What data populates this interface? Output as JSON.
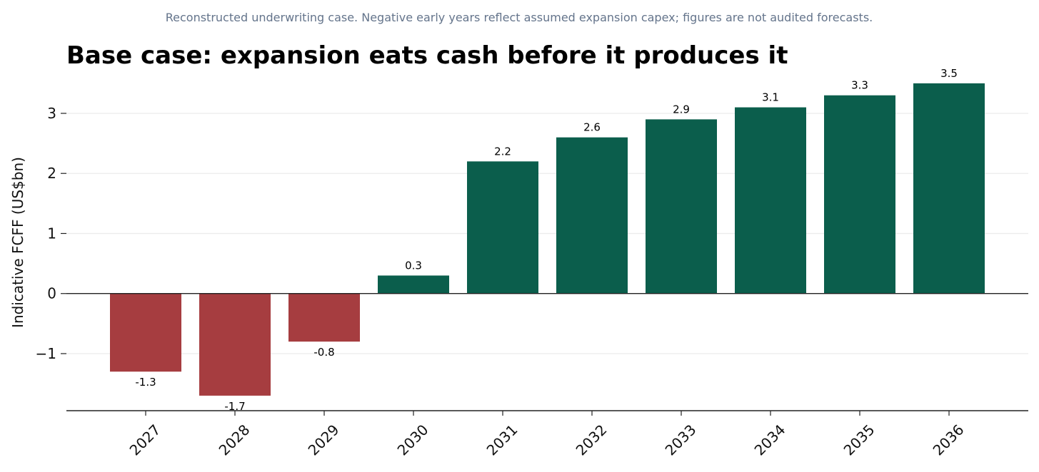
{
  "caption": "Reconstructed underwriting case. Negative early years reflect assumed expansion capex; figures are not audited forecasts.",
  "colors": {
    "positive": "#0b5e4c",
    "negative": "#a63d40",
    "grid": "#ececec",
    "axis": "#222222",
    "caption": "#64748b"
  },
  "chart_data": {
    "type": "bar",
    "title": "Base case: expansion eats cash before it produces it",
    "xlabel": "",
    "ylabel": "Indicative FCFF (US$bn)",
    "categories": [
      "2027",
      "2028",
      "2029",
      "2030",
      "2031",
      "2032",
      "2033",
      "2034",
      "2035",
      "2036"
    ],
    "values": [
      -1.3,
      -1.7,
      -0.8,
      0.3,
      2.2,
      2.6,
      2.9,
      3.1,
      3.3,
      3.5
    ],
    "data_labels": [
      "-1.3",
      "-1.7",
      "-0.8",
      "0.3",
      "2.2",
      "2.6",
      "2.9",
      "3.1",
      "3.3",
      "3.5"
    ],
    "ylim": [
      -1.95,
      3.7
    ],
    "yticks": [
      -1,
      0,
      1,
      2,
      3
    ],
    "ytick_labels": [
      "−1",
      "0",
      "1",
      "2",
      "3"
    ],
    "grid": "horizontal",
    "zero_line": true
  }
}
